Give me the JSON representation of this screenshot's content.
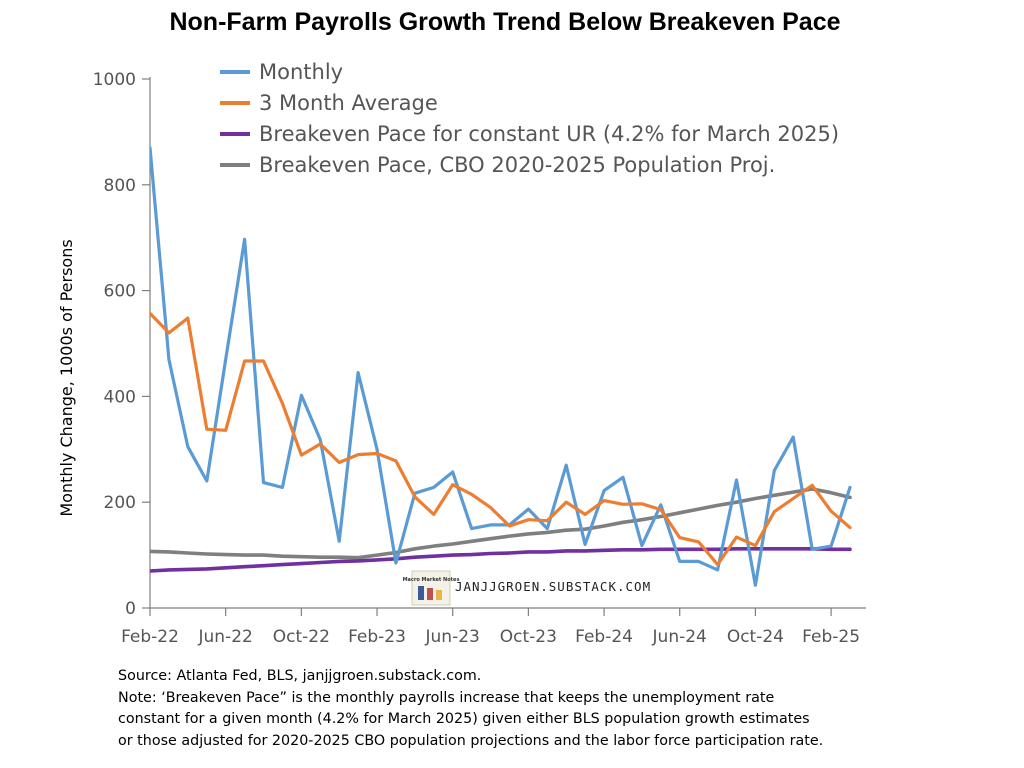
{
  "chart_data": {
    "type": "line",
    "title": "Non-Farm Payrolls Growth Trend Below Breakeven Pace",
    "ylabel": "Monthly Change, 1000s of Persons",
    "xlabel": "",
    "ylim": [
      0,
      1000
    ],
    "yticks": [
      0,
      200,
      400,
      600,
      800,
      1000
    ],
    "x_tick_labels": [
      "Feb-22",
      "Jun-22",
      "Oct-22",
      "Feb-23",
      "Jun-23",
      "Oct-23",
      "Feb-24",
      "Jun-24",
      "Oct-24",
      "Feb-25"
    ],
    "x_tick_indices": [
      0,
      4,
      8,
      12,
      16,
      20,
      24,
      28,
      32,
      36
    ],
    "n_points": 38,
    "legend_position": "top-left",
    "series": [
      {
        "name": "Monthly",
        "color": "#5b9bd5",
        "values": [
          870,
          470,
          305,
          240,
          470,
          697,
          237,
          228,
          402,
          318,
          126,
          445,
          300,
          85,
          217,
          228,
          257,
          150,
          157,
          157,
          187,
          150,
          270,
          120,
          222,
          247,
          118,
          195,
          88,
          88,
          72,
          242,
          43,
          260,
          323,
          111,
          117,
          228
        ]
      },
      {
        "name": "3 Month Average",
        "color": "#ed7d31",
        "values": [
          557,
          520,
          548,
          338,
          336,
          467,
          467,
          387,
          289,
          310,
          275,
          290,
          292,
          278,
          210,
          177,
          233,
          215,
          190,
          155,
          167,
          165,
          200,
          177,
          203,
          196,
          197,
          186,
          133,
          125,
          82,
          134,
          118,
          182,
          207,
          232,
          183,
          152
        ]
      },
      {
        "name": "Breakeven Pace for constant UR (4.2% for March 2025)",
        "color": "#7030a0",
        "values": [
          70,
          72,
          73,
          74,
          76,
          78,
          80,
          82,
          84,
          86,
          88,
          89,
          91,
          93,
          96,
          98,
          100,
          101,
          103,
          104,
          106,
          106,
          108,
          108,
          109,
          110,
          110,
          111,
          111,
          111,
          111,
          112,
          112,
          112,
          112,
          112,
          111,
          111
        ]
      },
      {
        "name": "Breakeven Pace, CBO 2020-2025 Population Proj.",
        "color": "#7f7f7f",
        "values": [
          107,
          106,
          104,
          102,
          101,
          100,
          100,
          98,
          97,
          96,
          96,
          95,
          100,
          105,
          112,
          117,
          121,
          126,
          131,
          136,
          140,
          143,
          147,
          149,
          155,
          162,
          167,
          173,
          180,
          187,
          194,
          200,
          207,
          213,
          219,
          225,
          218,
          209
        ]
      }
    ]
  },
  "watermark": {
    "logo_text": "Macro Market Notes",
    "url": "JANJJGROEN.SUBSTACK.COM"
  },
  "footer": {
    "source": "Source: Atlanta Fed, BLS, janjjgroen.substack.com.",
    "note_lines": [
      "Note: ‘Breakeven Pace” is the monthly payrolls increase that keeps the unemployment rate",
      "constant for a given month (4.2% for March 2025) given either BLS population growth estimates",
      "or those adjusted for 2020-2025 CBO population projections and the labor force participation rate."
    ]
  }
}
